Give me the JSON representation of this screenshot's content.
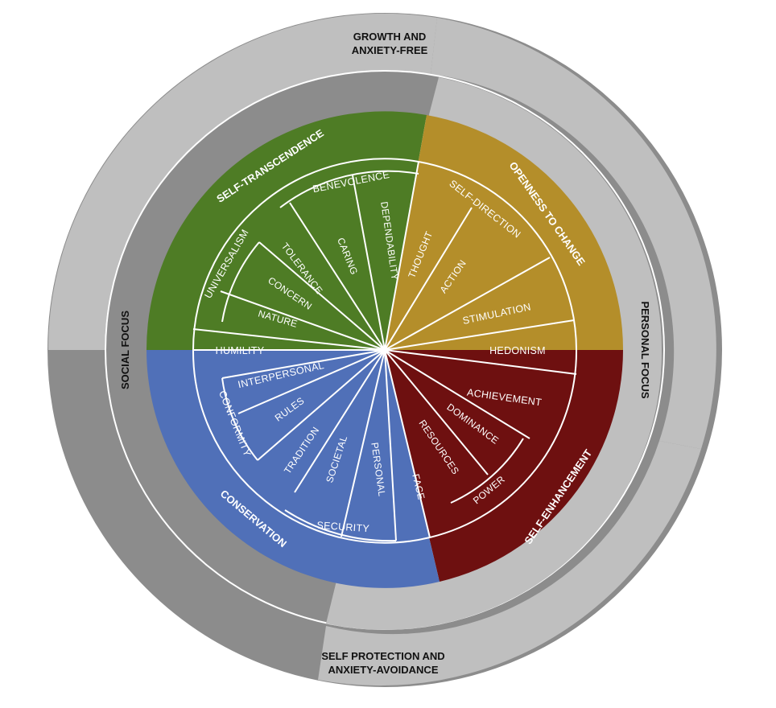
{
  "outer_labels": {
    "top": [
      "GROWTH AND",
      "ANXIETY-FREE"
    ],
    "bottom": [
      "SELF PROTECTION AND",
      "ANXIETY-AVOIDANCE"
    ],
    "left": "SOCIAL FOCUS",
    "right": "PERSONAL FOCUS"
  },
  "domains": [
    {
      "key": "self_transcendence",
      "label": "SELF-TRANSCENDENCE",
      "color": "#4e7c25"
    },
    {
      "key": "openness",
      "label": "OPENNESS TO CHANGE",
      "color": "#b48e2a"
    },
    {
      "key": "self_enhancement",
      "label": "SELF-ENHANCEMENT",
      "color": "#6e1010"
    },
    {
      "key": "conservation",
      "label": "CONSERVATION",
      "color": "#5070b8"
    }
  ],
  "ring_colors": {
    "light": "#bfbfbf",
    "dark": "#8c8c8c"
  },
  "values": {
    "benevolence": "BENEVOLENCE",
    "dependability": "DEPENDABILITY",
    "caring": "CARING",
    "universalism": "UNIVERSALISM",
    "tolerance": "TOLERANCE",
    "concern": "CONCERN",
    "nature": "NATURE",
    "humility": "HUMILITY",
    "self_direction": "SELF-DIRECTION",
    "thought": "THOUGHT",
    "action": "ACTION",
    "stimulation": "STIMULATION",
    "hedonism": "HEDONISM",
    "achievement": "ACHIEVEMENT",
    "dominance": "DOMINANCE",
    "resources": "RESOURCES",
    "power": "POWER",
    "face": "FACE",
    "interpersonal": "INTERPERSONAL",
    "rules": "RULES",
    "conformity": "CONFORMITY",
    "tradition": "TRADITION",
    "societal": "SOCIETAL",
    "personal": "PERSONAL",
    "security": "SECURITY"
  }
}
